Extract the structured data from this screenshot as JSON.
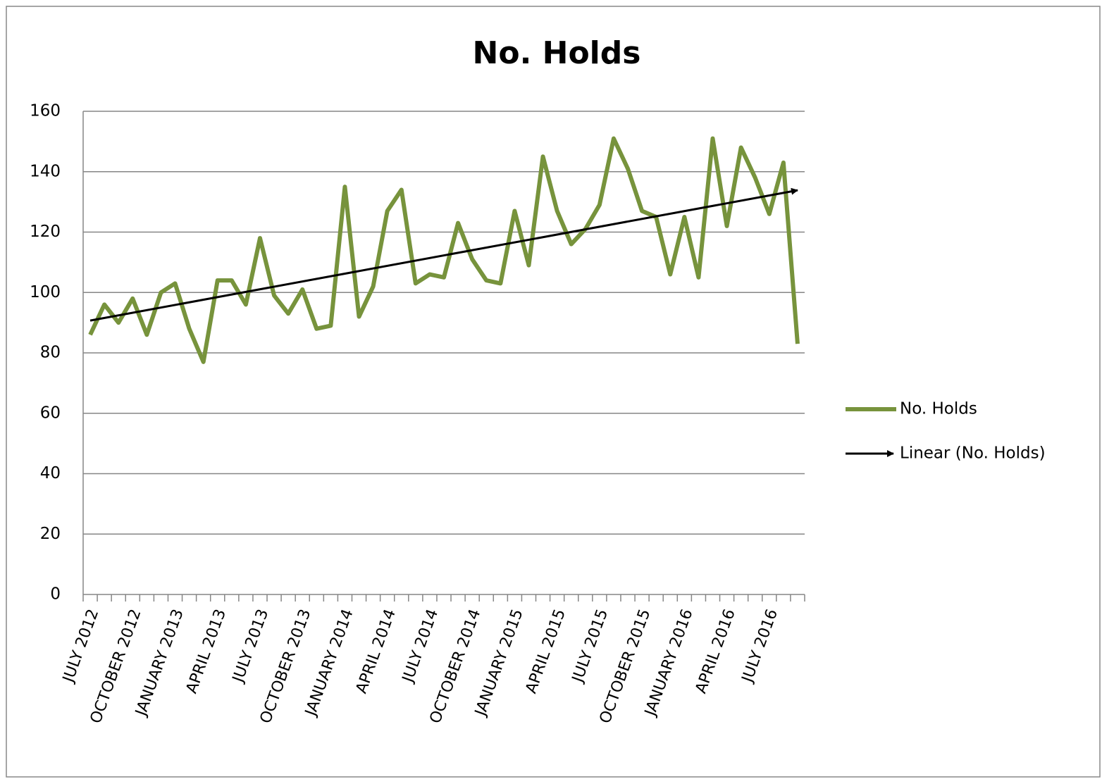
{
  "chart_data": {
    "type": "line",
    "title": "No. Holds",
    "categories": [
      "JULY 2012",
      null,
      null,
      "OCTOBER 2012",
      null,
      null,
      "JANUARY 2013",
      null,
      null,
      "APRIL 2013",
      null,
      null,
      "JULY 2013",
      null,
      null,
      "OCTOBER 2013",
      null,
      null,
      "JANUARY 2014",
      null,
      null,
      "APRIL 2014",
      null,
      null,
      "JULY 2014",
      null,
      null,
      "OCTOBER 2014",
      null,
      null,
      "JANUARY 2015",
      null,
      null,
      "APRIL 2015",
      null,
      null,
      "JULY 2015",
      null,
      null,
      "OCTOBER 2015",
      null,
      null,
      "JANUARY 2016",
      null,
      null,
      "APRIL 2016",
      null,
      null,
      "JULY 2016",
      null,
      null
    ],
    "series": [
      {
        "name": "No. Holds",
        "color": "#77933c",
        "values": [
          86,
          96,
          90,
          98,
          86,
          100,
          103,
          88,
          77,
          104,
          104,
          96,
          118,
          99,
          93,
          101,
          88,
          89,
          135,
          92,
          102,
          127,
          134,
          103,
          106,
          105,
          123,
          111,
          104,
          103,
          127,
          109,
          145,
          127,
          116,
          121,
          129,
          151,
          141,
          127,
          125,
          106,
          125,
          105,
          151,
          122,
          148,
          138,
          126,
          143,
          83
        ]
      }
    ],
    "trendline": {
      "name": "Linear (No. Holds)",
      "color": "#000000",
      "fit": "linear"
    },
    "ylim": [
      0,
      160
    ],
    "yticks": [
      0,
      20,
      40,
      60,
      80,
      100,
      120,
      140,
      160
    ],
    "grid": true,
    "legend": "right"
  }
}
